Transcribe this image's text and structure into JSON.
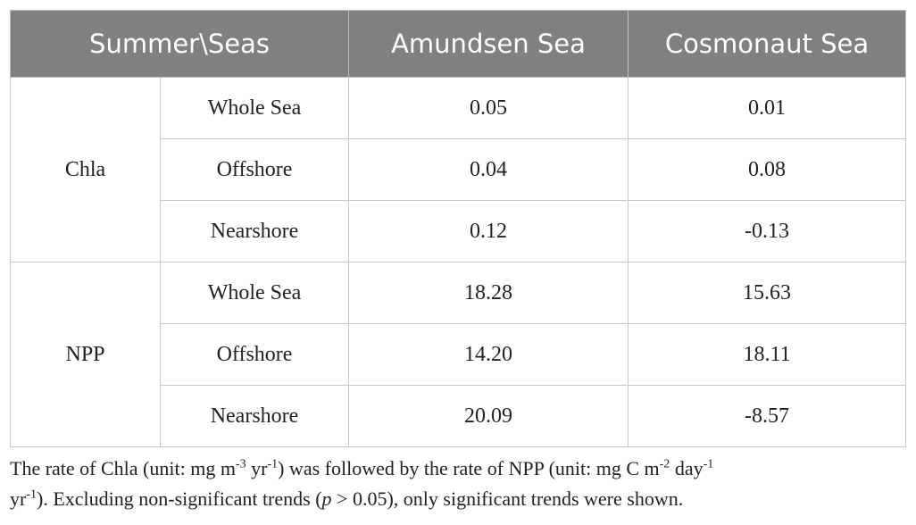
{
  "table": {
    "header": [
      "Summer\\Seas",
      "Amundsen Sea",
      "Cosmonaut Sea"
    ],
    "groups": [
      {
        "label": "Chla",
        "rows": [
          [
            "Whole Sea",
            "0.05",
            "0.01"
          ],
          [
            "Offshore",
            "0.04",
            "0.08"
          ],
          [
            "Nearshore",
            "0.12",
            "-0.13"
          ]
        ]
      },
      {
        "label": "NPP",
        "rows": [
          [
            "Whole Sea",
            "18.28",
            "15.63"
          ],
          [
            "Offshore",
            "14.20",
            "18.11"
          ],
          [
            "Nearshore",
            "20.09",
            "-8.57"
          ]
        ]
      }
    ]
  },
  "footnote": [
    "The rate of Chla (unit: mg m",
    "-3",
    " yr",
    "-1",
    ") was followed by the rate of NPP (unit: mg C m",
    "-2",
    " day",
    "-1",
    "yr",
    "-1",
    "). Excluding non-significant trends (",
    "p",
    " > 0.05), only significant trends were shown."
  ]
}
